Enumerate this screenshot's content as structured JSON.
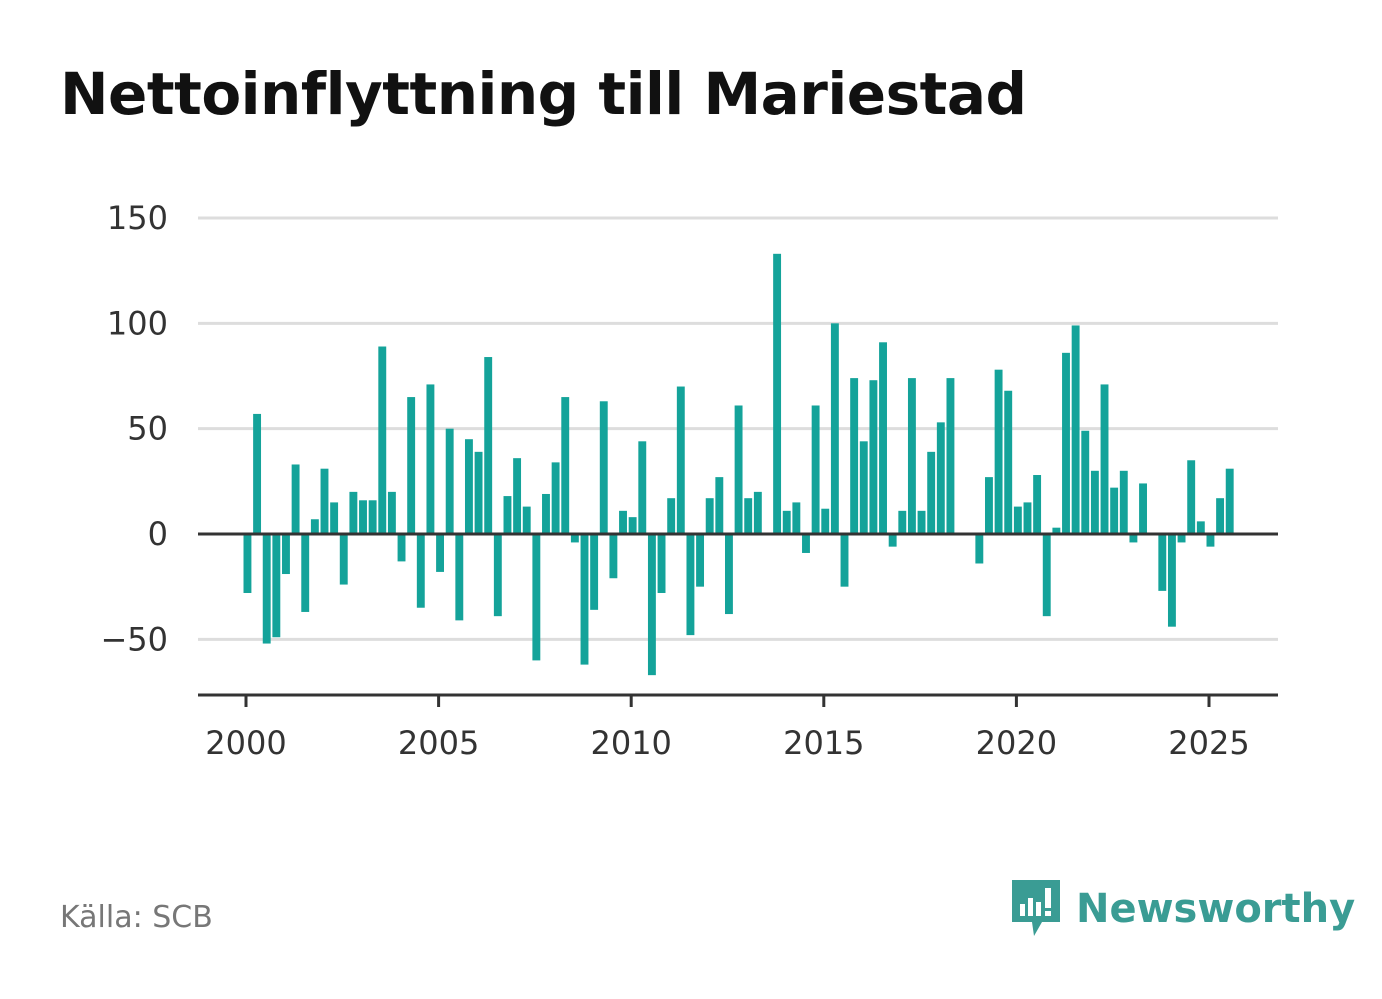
{
  "header": {
    "title": "Nettoinflyttning till Mariestad"
  },
  "footer": {
    "source": "Källa: SCB",
    "brand": "Newsworthy"
  },
  "colors": {
    "bar": "#14a39a",
    "grid": "#dddddd",
    "zero": "#333333",
    "brand": "#3a9c94"
  },
  "chart_data": {
    "type": "bar",
    "title": "Nettoinflyttning till Mariestad",
    "xlabel": "",
    "ylabel": "",
    "ylim": [
      -77,
      160
    ],
    "xlim": [
      1999.75,
      2027.25
    ],
    "grid": true,
    "legend": "none",
    "yticks": [
      {
        "value": 150,
        "label": "150"
      },
      {
        "value": 100,
        "label": "100"
      },
      {
        "value": 50,
        "label": "50"
      },
      {
        "value": 0,
        "label": "0"
      },
      {
        "value": -50,
        "label": "−50"
      }
    ],
    "xticks": [
      {
        "value": 2000,
        "label": "2000"
      },
      {
        "value": 2005,
        "label": "2005"
      },
      {
        "value": 2010,
        "label": "2010"
      },
      {
        "value": 2015,
        "label": "2015"
      },
      {
        "value": 2020,
        "label": "2020"
      },
      {
        "value": 2025,
        "label": "2025"
      }
    ],
    "period_start": "2000 Q1",
    "frequency": "quarterly",
    "series": [
      {
        "values": [
          -28,
          57,
          -52,
          -49,
          -19,
          33,
          -37,
          7,
          31,
          15,
          -24,
          20,
          16,
          16,
          89,
          20,
          -13,
          65,
          -35,
          71,
          -18,
          50,
          -41,
          45,
          39,
          84,
          -39,
          18,
          36,
          13,
          -60,
          19,
          34,
          65,
          -4,
          -62,
          -36,
          63,
          -21,
          11,
          8,
          44,
          -67,
          -28,
          17,
          70,
          -48,
          -25,
          17,
          27,
          -38,
          61,
          17,
          20,
          0,
          133,
          11,
          15,
          -9,
          61,
          12,
          100,
          -25,
          74,
          44,
          73,
          91,
          -6,
          11,
          74,
          11,
          39,
          53,
          74,
          0,
          0,
          -14,
          27,
          78,
          68,
          13,
          15,
          28,
          -39,
          3,
          86,
          99,
          49,
          30,
          71,
          22,
          30,
          -4,
          24,
          0,
          -27,
          -44,
          -4,
          35,
          6,
          -6,
          17,
          31
        ]
      }
    ]
  }
}
